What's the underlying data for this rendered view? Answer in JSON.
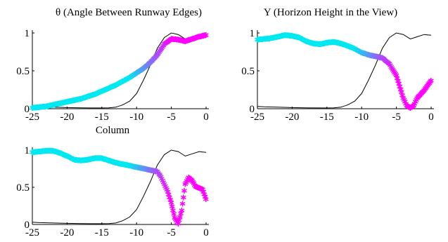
{
  "chart_data": [
    {
      "type": "scatter",
      "title": "θ (Angle Between Runway Edges)",
      "xlabel": "Column",
      "ylabel": "",
      "xlim": [
        -25,
        0
      ],
      "ylim": [
        0,
        1
      ],
      "xticks": [
        "-25",
        "-20",
        "-15",
        "-10",
        "-5",
        "0"
      ],
      "yticks": [
        "0",
        "0.5",
        "1"
      ],
      "marker": "asterisk",
      "color_start": "#00e8f0",
      "color_end": "#ff00ff",
      "series": [
        {
          "x": [
            -25,
            -24,
            -23,
            -22,
            -21,
            -20,
            -19,
            -18,
            -17,
            -16,
            -15,
            -14,
            -13,
            -12,
            -11,
            -10,
            -9,
            -8,
            -7,
            -6,
            -5,
            -4,
            -3,
            -2,
            -1,
            0
          ],
          "y": [
            0.02,
            0.03,
            0.04,
            0.06,
            0.08,
            0.1,
            0.12,
            0.14,
            0.17,
            0.2,
            0.24,
            0.28,
            0.32,
            0.37,
            0.42,
            0.48,
            0.54,
            0.62,
            0.72,
            0.86,
            0.93,
            0.92,
            0.9,
            0.93,
            0.96,
            0.98
          ]
        },
        {
          "x": [
            -25,
            -24,
            -22,
            -20,
            -18,
            -16,
            -15,
            -14,
            -13,
            -12,
            -11,
            -10,
            -9,
            -8,
            -7,
            -6,
            -5,
            -4,
            -3,
            -2,
            -1,
            0
          ],
          "y": [
            0.03,
            0.025,
            0.02,
            0.015,
            0.012,
            0.01,
            0.01,
            0.012,
            0.02,
            0.05,
            0.1,
            0.2,
            0.38,
            0.58,
            0.8,
            0.94,
            1.0,
            0.98,
            0.92,
            0.95,
            0.98,
            0.97
          ]
        }
      ]
    },
    {
      "type": "scatter",
      "title": "Y (Horizon Height in the View)",
      "xlabel": "",
      "ylabel": "",
      "xlim": [
        -25,
        0
      ],
      "ylim": [
        0,
        1
      ],
      "xticks": [
        "-25",
        "-20",
        "-15",
        "-10",
        "-5",
        "0"
      ],
      "yticks": [
        "0",
        "0.5",
        "1"
      ],
      "marker": "asterisk",
      "color_start": "#00e8f0",
      "color_end": "#ff00ff",
      "series": [
        {
          "x": [
            -25,
            -24,
            -23,
            -22,
            -21,
            -20,
            -19,
            -18,
            -17,
            -16,
            -15,
            -14,
            -13,
            -12,
            -11,
            -10,
            -9,
            -8,
            -7,
            -6,
            -5,
            -4.5,
            -4,
            -3.5,
            -3,
            -2.5,
            -2,
            -1,
            0
          ],
          "y": [
            0.92,
            0.93,
            0.94,
            0.96,
            0.98,
            0.97,
            0.95,
            0.9,
            0.87,
            0.86,
            0.88,
            0.89,
            0.87,
            0.84,
            0.8,
            0.75,
            0.72,
            0.7,
            0.68,
            0.6,
            0.45,
            0.3,
            0.15,
            0.05,
            0.02,
            0.05,
            0.15,
            0.25,
            0.38
          ]
        },
        {
          "x": [
            -25,
            -24,
            -22,
            -20,
            -18,
            -16,
            -15,
            -14,
            -13,
            -12,
            -11,
            -10,
            -9,
            -8,
            -7,
            -6,
            -5,
            -4,
            -3,
            -2,
            -1,
            0
          ],
          "y": [
            0.03,
            0.025,
            0.02,
            0.015,
            0.012,
            0.01,
            0.01,
            0.012,
            0.02,
            0.05,
            0.1,
            0.2,
            0.38,
            0.58,
            0.8,
            0.94,
            1.0,
            0.98,
            0.92,
            0.95,
            0.98,
            0.97
          ]
        }
      ]
    },
    {
      "type": "scatter",
      "title": "",
      "xlabel": "",
      "ylabel": "",
      "xlim": [
        -25,
        0
      ],
      "ylim": [
        0,
        1
      ],
      "xticks": [
        "-25",
        "-20",
        "-15",
        "-10",
        "-5",
        "0"
      ],
      "yticks": [
        "0",
        "0.5",
        "1"
      ],
      "marker": "asterisk",
      "color_start": "#00e8f0",
      "color_end": "#ff00ff",
      "series": [
        {
          "x": [
            -25,
            -24,
            -23,
            -22,
            -21,
            -20,
            -19,
            -18,
            -17,
            -16,
            -15,
            -14,
            -13,
            -12,
            -11,
            -10,
            -9,
            -8,
            -7,
            -6.5,
            -6,
            -5.5,
            -5,
            -4.5,
            -4,
            -3.5,
            -3,
            -2.5,
            -2,
            -1.5,
            -1,
            -0.5,
            0
          ],
          "y": [
            0.98,
            0.99,
            1.0,
            1.0,
            0.97,
            0.93,
            0.88,
            0.87,
            0.88,
            0.9,
            0.9,
            0.87,
            0.84,
            0.82,
            0.8,
            0.78,
            0.76,
            0.74,
            0.72,
            0.65,
            0.55,
            0.45,
            0.3,
            0.1,
            0.02,
            0.2,
            0.55,
            0.64,
            0.6,
            0.52,
            0.5,
            0.48,
            0.35
          ]
        },
        {
          "x": [
            -25,
            -24,
            -22,
            -20,
            -18,
            -16,
            -15,
            -14,
            -13,
            -12,
            -11,
            -10,
            -9,
            -8,
            -7,
            -6,
            -5,
            -4,
            -3,
            -2,
            -1,
            0
          ],
          "y": [
            0.03,
            0.025,
            0.02,
            0.015,
            0.012,
            0.01,
            0.01,
            0.012,
            0.02,
            0.05,
            0.1,
            0.2,
            0.38,
            0.58,
            0.8,
            0.94,
            1.0,
            0.98,
            0.92,
            0.95,
            0.98,
            0.97
          ]
        }
      ]
    }
  ]
}
